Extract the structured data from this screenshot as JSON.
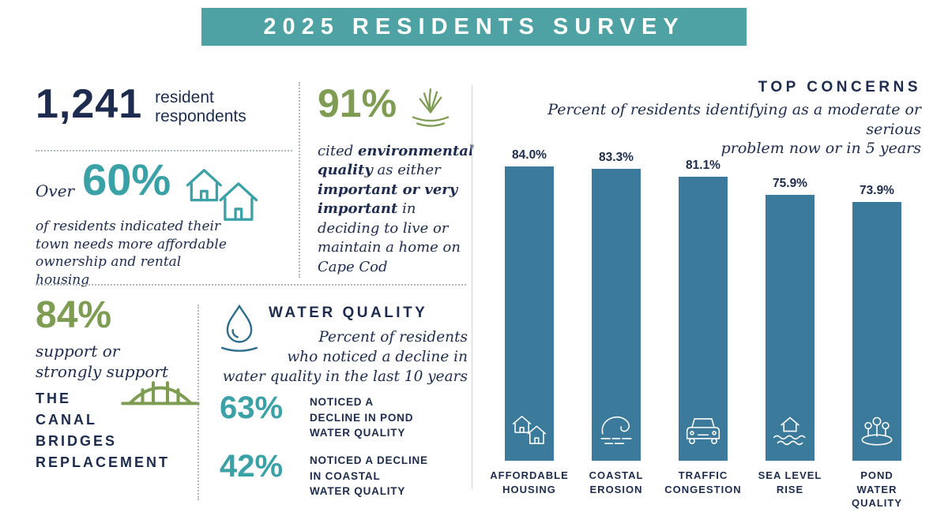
{
  "title": "2025 RESIDENTS SURVEY",
  "colors": {
    "banner": "#4EA2A3",
    "navy": "#1D2C4E",
    "teal": "#3AA2A6",
    "green": "#7E9D52",
    "bar": "#3B7A9B"
  },
  "stats": {
    "respondents": {
      "number": "1,241",
      "label": "resident\nrespondents"
    },
    "affordable_housing": {
      "prefix": "Over",
      "pct": "60%",
      "desc": "of residents indicated their town needs more affordable ownership and rental housing"
    },
    "environmental": {
      "pct": "91%",
      "t1": "cited ",
      "t2": "environmental quality",
      "t3": " as either ",
      "t4": "important or very important",
      "t5": " in deciding to live or maintain a home on Cape Cod"
    },
    "canal_bridges": {
      "pct": "84%",
      "desc": "support or strongly support",
      "heading": "THE\nCANAL\nBRIDGES\nREPLACEMENT"
    },
    "water_quality": {
      "heading": "WATER QUALITY",
      "desc": "Percent of residents\nwho noticed a decline in\nwater quality in the last 10 years",
      "items": [
        {
          "pct": "63%",
          "label": "NOTICED A\nDECLINE IN POND\nWATER QUALITY"
        },
        {
          "pct": "42%",
          "label": "NOTICED A DECLINE\nIN COASTAL\nWATER QUALITY"
        }
      ]
    }
  },
  "chart_data": {
    "type": "bar",
    "title": "TOP CONCERNS",
    "subtitle": "Percent of residents identifying as a moderate or serious\nproblem now or in 5 years",
    "categories": [
      "AFFORDABLE\nHOUSING",
      "COASTAL\nEROSION",
      "TRAFFIC\nCONGESTION",
      "SEA LEVEL\nRISE",
      "POND WATER\nQUALITY"
    ],
    "values": [
      84.0,
      83.3,
      81.1,
      75.9,
      73.9
    ],
    "value_labels": [
      "84.0%",
      "83.3%",
      "81.1%",
      "75.9%",
      "73.9%"
    ],
    "ylim": [
      0,
      90
    ],
    "bar_color": "#3B7A9B",
    "grid": false,
    "legend": false,
    "icons": [
      "affordable-housing-icon",
      "coastal-erosion-icon",
      "traffic-congestion-icon",
      "sea-level-rise-icon",
      "pond-water-quality-icon"
    ]
  }
}
